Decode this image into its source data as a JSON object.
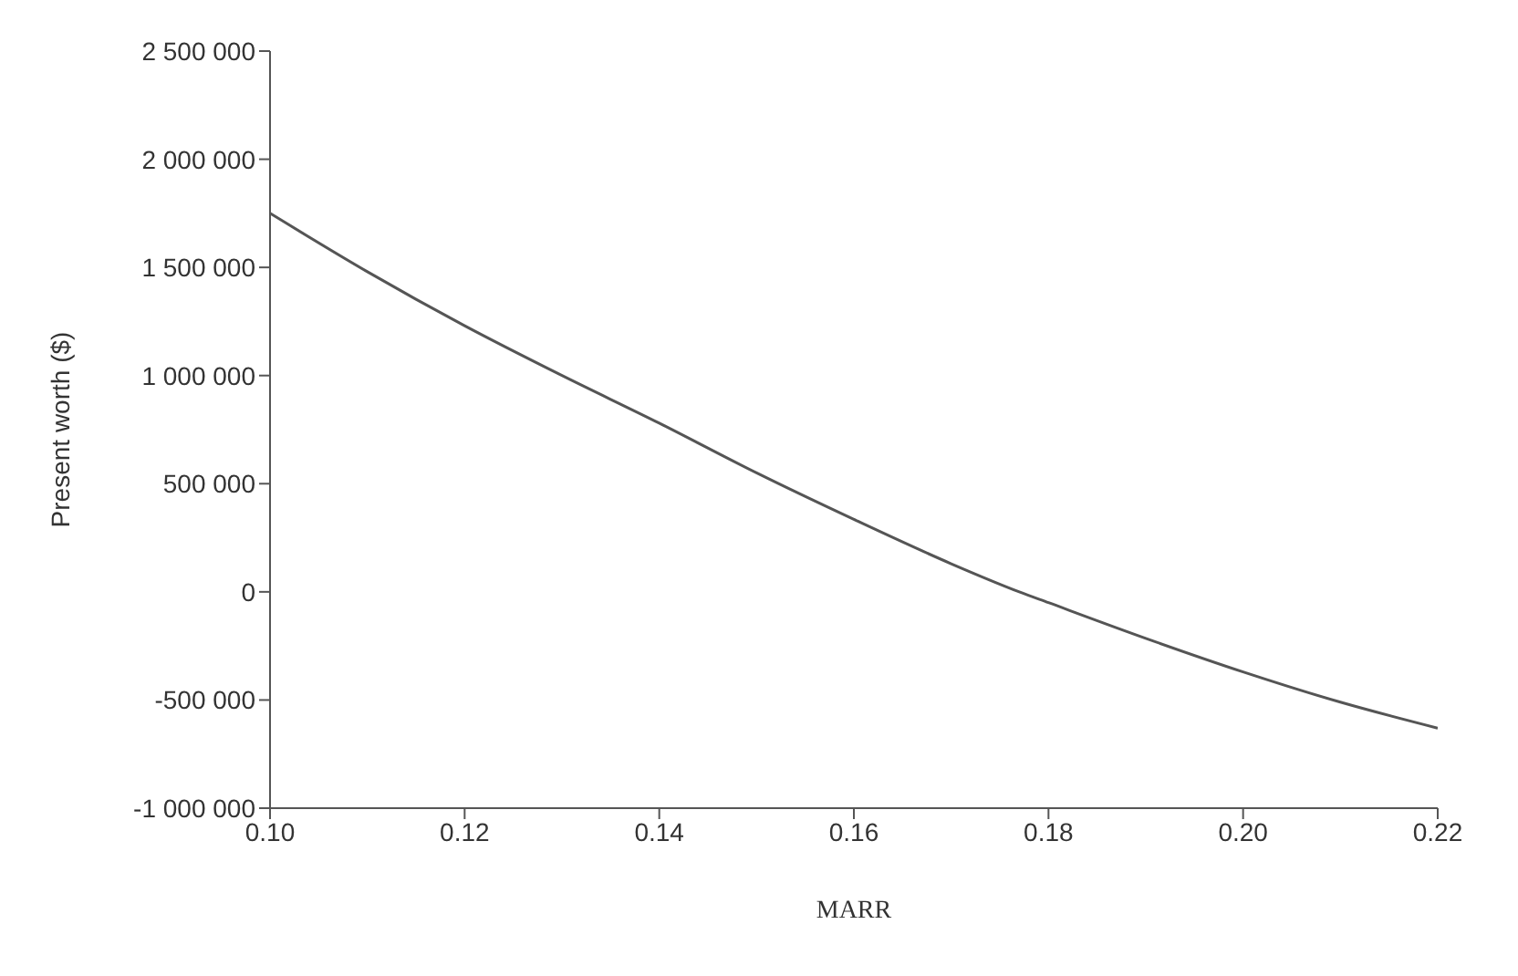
{
  "chart_data": {
    "type": "line",
    "xlabel": "MARR",
    "ylabel": "Present worth ($)",
    "x": [
      0.1,
      0.11,
      0.12,
      0.13,
      0.14,
      0.15,
      0.16,
      0.17,
      0.177,
      0.18,
      0.19,
      0.2,
      0.21,
      0.22
    ],
    "series": [
      {
        "color": "#555555",
        "values": [
          1750000,
          1480000,
          1230000,
          1000000,
          780000,
          550000,
          335000,
          130000,
          0,
          -50000,
          -215000,
          -370000,
          -510000,
          -630000
        ]
      }
    ],
    "xlim": [
      0.1,
      0.22
    ],
    "xticks": [
      {
        "value": 0.1,
        "label": "0.10"
      },
      0.12,
      0.14,
      0.16,
      0.18,
      {
        "value": 0.2,
        "label": "0.20"
      },
      0.22
    ],
    "ylim": [
      -1000000,
      2500000
    ],
    "yticks": [
      {
        "value": -1000000,
        "label": "-1 000 000"
      },
      {
        "value": -500000,
        "label": "-500 000"
      },
      0,
      {
        "value": 500000,
        "label": "500 000"
      },
      {
        "value": 1000000,
        "label": "1 000 000"
      },
      {
        "value": 1500000,
        "label": "1 500 000"
      },
      {
        "value": 2000000,
        "label": "2 000 000"
      },
      {
        "value": 2500000,
        "label": "2 500 000"
      }
    ],
    "grid": false,
    "marker": "none",
    "line_style": "solid"
  }
}
